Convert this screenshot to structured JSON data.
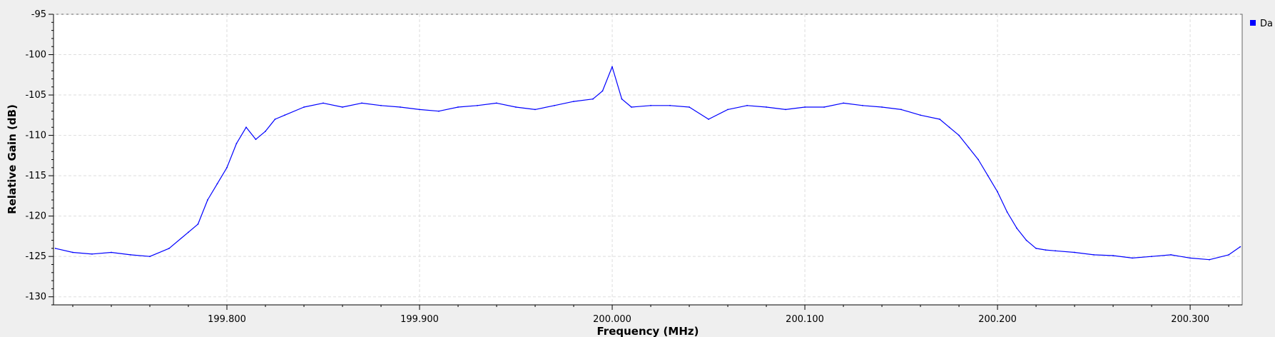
{
  "chart_data": {
    "type": "line",
    "title": "",
    "xlabel": "Frequency (MHz)",
    "ylabel": "Relative Gain (dB)",
    "xlim": [
      199.71,
      200.327
    ],
    "ylim": [
      -131.0,
      -95.0
    ],
    "xticks": [
      199.8,
      199.9,
      200.0,
      200.1,
      200.2,
      200.3
    ],
    "xtick_labels": [
      "199.800",
      "199.900",
      "200.000",
      "200.100",
      "200.200",
      "200.300"
    ],
    "yticks": [
      -95,
      -100,
      -105,
      -110,
      -115,
      -120,
      -125,
      -130
    ],
    "ytick_labels": [
      "-95",
      "-100",
      "-105",
      "-110",
      "-115",
      "-120",
      "-125",
      "-130"
    ],
    "grid": true,
    "legend_position": "top-right",
    "series": [
      {
        "name": "Da",
        "color": "#0000ff",
        "x": [
          199.711,
          199.72,
          199.73,
          199.74,
          199.75,
          199.76,
          199.77,
          199.78,
          199.785,
          199.79,
          199.795,
          199.8,
          199.805,
          199.81,
          199.815,
          199.82,
          199.825,
          199.83,
          199.84,
          199.85,
          199.86,
          199.87,
          199.88,
          199.89,
          199.9,
          199.91,
          199.92,
          199.93,
          199.94,
          199.95,
          199.96,
          199.97,
          199.98,
          199.99,
          199.995,
          200.0,
          200.005,
          200.01,
          200.02,
          200.03,
          200.04,
          200.05,
          200.06,
          200.07,
          200.08,
          200.09,
          200.1,
          200.11,
          200.12,
          200.13,
          200.14,
          200.15,
          200.16,
          200.17,
          200.175,
          200.18,
          200.185,
          200.19,
          200.195,
          200.2,
          200.205,
          200.21,
          200.215,
          200.22,
          200.225,
          200.23,
          200.24,
          200.25,
          200.26,
          200.27,
          200.28,
          200.29,
          200.3,
          200.31,
          200.32,
          200.326
        ],
        "y": [
          -124,
          -124.5,
          -124.7,
          -124.5,
          -124.8,
          -125,
          -124,
          -122,
          -121,
          -118,
          -116,
          -114,
          -111,
          -109,
          -110.5,
          -109.5,
          -108,
          -107.5,
          -106.5,
          -106,
          -106.5,
          -106,
          -106.3,
          -106.5,
          -106.8,
          -107,
          -106.5,
          -106.3,
          -106,
          -106.5,
          -106.8,
          -106.3,
          -105.8,
          -105.5,
          -104.5,
          -101.5,
          -105.5,
          -106.5,
          -106.3,
          -106.3,
          -106.5,
          -108,
          -106.8,
          -106.3,
          -106.5,
          -106.8,
          -106.5,
          -106.5,
          -106,
          -106.3,
          -106.5,
          -106.8,
          -107.5,
          -108,
          -109,
          -110,
          -111.5,
          -113,
          -115,
          -117,
          -119.5,
          -121.5,
          -123,
          -124,
          -124.2,
          -124.3,
          -124.5,
          -124.8,
          -124.9,
          -125.2,
          -125,
          -124.8,
          -125.2,
          -125.4,
          -124.8,
          -123.8
        ]
      }
    ]
  }
}
